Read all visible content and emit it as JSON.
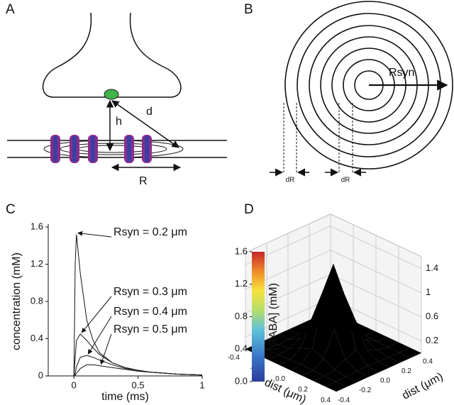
{
  "panel_labels": [
    "A",
    "B",
    "C",
    "D"
  ],
  "diagram_a": {
    "h": "h",
    "d": "d",
    "r": "R"
  },
  "diagram_b": {
    "rsyn": "Rsyn",
    "dr1": "dR",
    "dr2": "dR"
  },
  "chart_data": [
    {
      "type": "line",
      "xlabel": "time (ms)",
      "ylabel": "concentration (mM)",
      "x": [
        0,
        0.01,
        0.02,
        0.05,
        0.1,
        0.15,
        0.2,
        0.3,
        0.4,
        0.5,
        0.6,
        0.8,
        1.0
      ],
      "series": [
        {
          "name": "Rsyn = 0.2 μm",
          "color": "#111",
          "values": [
            0,
            1.2,
            1.52,
            1.1,
            0.6,
            0.38,
            0.25,
            0.14,
            0.09,
            0.06,
            0.04,
            0.02,
            0.01
          ]
        },
        {
          "name": "Rsyn = 0.3 μm",
          "color": "#111",
          "values": [
            0,
            0.2,
            0.38,
            0.45,
            0.38,
            0.3,
            0.23,
            0.14,
            0.09,
            0.06,
            0.04,
            0.02,
            0.01
          ]
        },
        {
          "name": "Rsyn = 0.4 μm",
          "color": "#111",
          "values": [
            0,
            0.03,
            0.1,
            0.2,
            0.22,
            0.2,
            0.17,
            0.12,
            0.08,
            0.06,
            0.04,
            0.02,
            0.01
          ]
        },
        {
          "name": "Rsyn = 0.5 μm",
          "color": "#111",
          "values": [
            0,
            0.005,
            0.03,
            0.08,
            0.12,
            0.12,
            0.11,
            0.09,
            0.07,
            0.05,
            0.04,
            0.02,
            0.01
          ]
        }
      ],
      "xlim": [
        -0.2,
        1
      ],
      "ylim": [
        0,
        1.6
      ],
      "xticks": [
        0,
        0.5,
        1
      ],
      "yticks": [
        0,
        0.4,
        0.8,
        1.2,
        1.6
      ]
    },
    {
      "type": "surface",
      "xlabel": "dist (μm)",
      "ylabel": "dist (μm)",
      "colorbar_label": "[GABA] (mM)",
      "x": [
        -0.4,
        -0.3,
        -0.2,
        -0.1,
        0,
        0.1,
        0.2,
        0.3,
        0.4
      ],
      "y": [
        -0.4,
        -0.3,
        -0.2,
        -0.1,
        0,
        0.1,
        0.2,
        0.3,
        0.4
      ],
      "z": [
        [
          0,
          0,
          0,
          0,
          0,
          0,
          0,
          0,
          0
        ],
        [
          0,
          0,
          0,
          0.01,
          0.02,
          0.01,
          0,
          0,
          0
        ],
        [
          0,
          0,
          0.03,
          0.12,
          0.2,
          0.12,
          0.03,
          0,
          0
        ],
        [
          0,
          0.01,
          0.12,
          0.53,
          0.88,
          0.53,
          0.12,
          0.01,
          0
        ],
        [
          0,
          0.02,
          0.2,
          0.88,
          1.45,
          0.88,
          0.2,
          0.02,
          0
        ],
        [
          0,
          0.01,
          0.12,
          0.53,
          0.88,
          0.53,
          0.12,
          0.01,
          0
        ],
        [
          0,
          0,
          0.03,
          0.12,
          0.2,
          0.12,
          0.03,
          0,
          0
        ],
        [
          0,
          0,
          0,
          0.01,
          0.02,
          0.01,
          0,
          0,
          0
        ],
        [
          0,
          0,
          0,
          0,
          0,
          0,
          0,
          0,
          0
        ]
      ],
      "xlim": [
        -0.4,
        0.4
      ],
      "ylim": [
        -0.4,
        0.4
      ],
      "xticks": [
        -0.4,
        -0.2,
        {
          "value": 0,
          "label": "0.0"
        },
        0.2,
        0.4
      ],
      "yticks": [
        -0.4,
        -0.2,
        {
          "value": 0,
          "label": "0.0"
        },
        0.2,
        0.4
      ],
      "zlim": [
        0,
        1.6
      ],
      "zticks": [
        0.2,
        0.6,
        1.0,
        1.4
      ],
      "clim": [
        0,
        1.6
      ],
      "colorbar_ticks": [
        {
          "value": 0,
          "label": "0.0"
        },
        0.4,
        0.8,
        1.2,
        1.6
      ],
      "colormap": "jet"
    }
  ]
}
